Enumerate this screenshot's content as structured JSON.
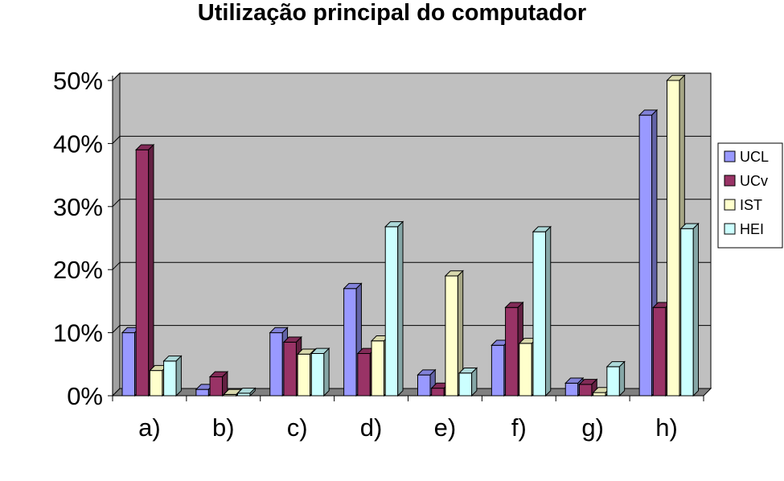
{
  "chart_data": {
    "type": "bar",
    "title": "Utilização principal do computador",
    "xlabel": "",
    "ylabel": "",
    "categories": [
      "a)",
      "b)",
      "c)",
      "d)",
      "e)",
      "f)",
      "g)",
      "h)"
    ],
    "series": [
      {
        "name": "UCL",
        "values": [
          10,
          1,
          10,
          17,
          3.3,
          8,
          2,
          44.5
        ],
        "color": "#9999ff"
      },
      {
        "name": "UCv",
        "values": [
          39,
          3,
          8.5,
          6.7,
          1.2,
          14,
          1.8,
          14
        ],
        "color": "#993366"
      },
      {
        "name": "IST",
        "values": [
          4,
          0.2,
          6.6,
          8.7,
          19,
          8.3,
          0.5,
          50
        ],
        "color": "#ffffcc"
      },
      {
        "name": "HEI",
        "values": [
          5.5,
          0.4,
          6.7,
          26.8,
          3.6,
          26,
          4.6,
          26.5
        ],
        "color": "#ccffff"
      }
    ],
    "ylim": [
      0,
      50
    ],
    "yticks": [
      0,
      10,
      20,
      30,
      40,
      50
    ],
    "ytick_labels": [
      "0%",
      "10%",
      "20%",
      "30%",
      "40%",
      "50%"
    ],
    "grid": true,
    "plot_background": "#c0c0c0",
    "legend_position": "right"
  }
}
